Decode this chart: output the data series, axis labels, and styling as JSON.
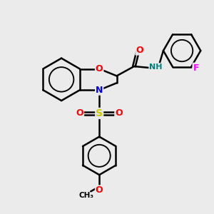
{
  "bg_color": "#ebebeb",
  "atom_colors": {
    "O": "#ff0000",
    "N": "#0000ff",
    "S": "#cccc00",
    "F": "#ff00ff",
    "H": "#008080",
    "C": "#000000"
  },
  "bond_color": "#000000",
  "bond_width": 1.8,
  "figsize": [
    3.0,
    3.0
  ],
  "dpi": 100
}
